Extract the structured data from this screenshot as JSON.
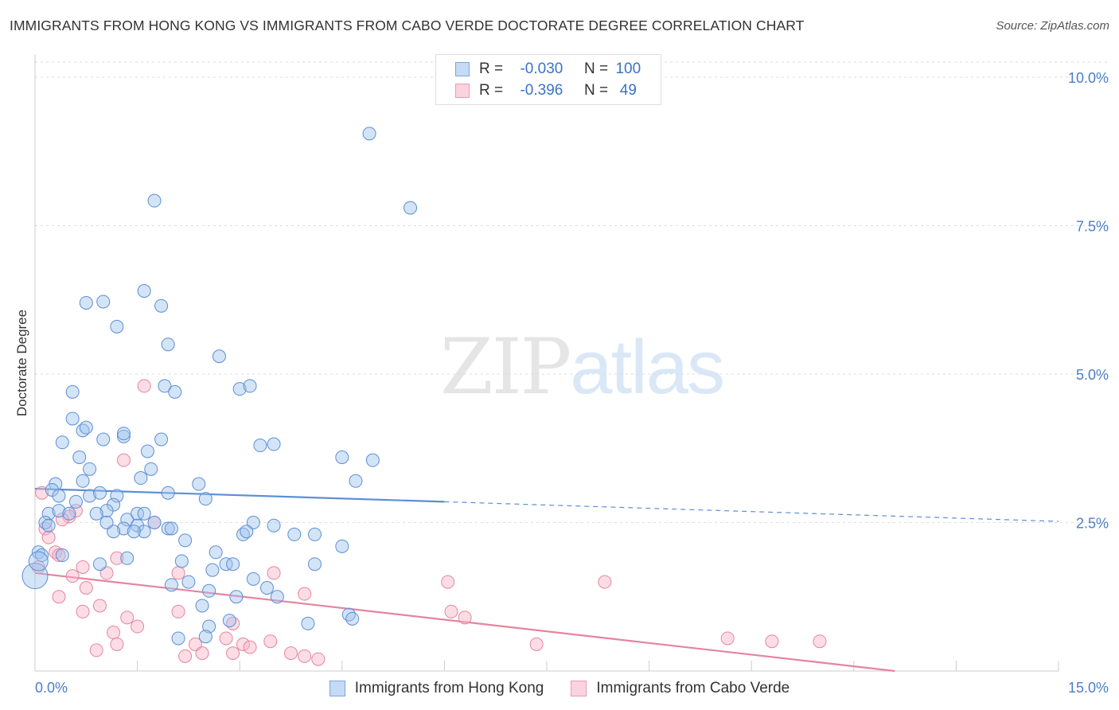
{
  "title": "IMMIGRANTS FROM HONG KONG VS IMMIGRANTS FROM CABO VERDE DOCTORATE DEGREE CORRELATION CHART",
  "source": "Source: ZipAtlas.com",
  "watermark": {
    "zip": "ZIP",
    "atlas": "atlas"
  },
  "legend_top": {
    "rows": [
      {
        "r_label": "R =",
        "r_value": "-0.030",
        "n_label": "N =",
        "n_value": "100"
      },
      {
        "r_label": "R =",
        "r_value": "-0.396",
        "n_label": "N =",
        "n_value": "49"
      }
    ]
  },
  "colors": {
    "hong_kong": "#5b8fd4",
    "cabo_verde": "#e6849f",
    "axis_text": "#4a7fc9"
  },
  "chart_data": {
    "type": "scatter",
    "title": "IMMIGRANTS FROM HONG KONG VS IMMIGRANTS FROM CABO VERDE DOCTORATE DEGREE CORRELATION CHART",
    "xlabel": "",
    "ylabel": "Doctorate Degree",
    "xlim": [
      0,
      15
    ],
    "ylim": [
      0,
      10.5
    ],
    "x_tick_labels": [
      "0.0%",
      "15.0%"
    ],
    "y_ticks": [
      2.5,
      5.0,
      7.5,
      10.0
    ],
    "y_tick_labels": [
      "2.5%",
      "5.0%",
      "7.5%",
      "10.0%"
    ],
    "series": [
      {
        "name": "Immigrants from Hong Kong",
        "color": "#5b8fd4",
        "r": -0.03,
        "n": 100,
        "trend": {
          "x0": 0.0,
          "y0": 3.07,
          "x1": 6.0,
          "y1": 2.85,
          "dash_to_x": 15.0,
          "dash_to_y": 2.52
        },
        "points": [
          [
            4.9,
            9.05
          ],
          [
            5.5,
            7.8
          ],
          [
            1.75,
            7.92
          ],
          [
            1.6,
            6.4
          ],
          [
            0.75,
            6.2
          ],
          [
            1.0,
            6.22
          ],
          [
            1.85,
            6.15
          ],
          [
            1.2,
            5.8
          ],
          [
            1.95,
            5.5
          ],
          [
            2.7,
            5.3
          ],
          [
            0.55,
            4.7
          ],
          [
            1.9,
            4.8
          ],
          [
            2.05,
            4.7
          ],
          [
            3.0,
            4.75
          ],
          [
            3.15,
            4.8
          ],
          [
            0.55,
            4.25
          ],
          [
            0.7,
            4.05
          ],
          [
            0.75,
            4.1
          ],
          [
            0.4,
            3.85
          ],
          [
            1.0,
            3.9
          ],
          [
            1.3,
            3.95
          ],
          [
            1.3,
            4.0
          ],
          [
            1.65,
            3.7
          ],
          [
            1.85,
            3.9
          ],
          [
            3.3,
            3.8
          ],
          [
            3.5,
            3.82
          ],
          [
            4.5,
            3.6
          ],
          [
            4.95,
            3.55
          ],
          [
            0.65,
            3.6
          ],
          [
            0.8,
            3.4
          ],
          [
            1.7,
            3.4
          ],
          [
            1.55,
            3.25
          ],
          [
            0.7,
            3.2
          ],
          [
            4.7,
            3.2
          ],
          [
            2.4,
            3.15
          ],
          [
            0.3,
            3.15
          ],
          [
            0.25,
            3.05
          ],
          [
            1.95,
            3.0
          ],
          [
            0.8,
            2.95
          ],
          [
            0.95,
            3.0
          ],
          [
            1.2,
            2.95
          ],
          [
            2.5,
            2.9
          ],
          [
            0.35,
            2.95
          ],
          [
            0.6,
            2.85
          ],
          [
            1.15,
            2.8
          ],
          [
            0.2,
            2.65
          ],
          [
            0.35,
            2.7
          ],
          [
            0.5,
            2.65
          ],
          [
            1.05,
            2.7
          ],
          [
            1.35,
            2.55
          ],
          [
            1.5,
            2.65
          ],
          [
            1.6,
            2.65
          ],
          [
            1.75,
            2.5
          ],
          [
            0.9,
            2.65
          ],
          [
            1.3,
            2.4
          ],
          [
            1.5,
            2.45
          ],
          [
            1.6,
            2.35
          ],
          [
            0.15,
            2.5
          ],
          [
            0.2,
            2.45
          ],
          [
            1.15,
            2.35
          ],
          [
            1.45,
            2.35
          ],
          [
            1.95,
            2.4
          ],
          [
            2.2,
            2.2
          ],
          [
            3.2,
            2.5
          ],
          [
            3.5,
            2.45
          ],
          [
            3.05,
            2.3
          ],
          [
            3.1,
            2.35
          ],
          [
            3.8,
            2.3
          ],
          [
            4.1,
            2.3
          ],
          [
            4.5,
            2.1
          ],
          [
            0.05,
            2.0
          ],
          [
            0.1,
            1.95
          ],
          [
            0.4,
            1.95
          ],
          [
            0.95,
            1.8
          ],
          [
            1.35,
            1.9
          ],
          [
            2.15,
            1.85
          ],
          [
            2.65,
            2.0
          ],
          [
            2.8,
            1.8
          ],
          [
            2.9,
            1.8
          ],
          [
            2.6,
            1.7
          ],
          [
            4.1,
            1.8
          ],
          [
            3.2,
            1.55
          ],
          [
            3.4,
            1.4
          ],
          [
            2.25,
            1.5
          ],
          [
            2.0,
            1.45
          ],
          [
            2.55,
            1.35
          ],
          [
            2.95,
            1.25
          ],
          [
            3.55,
            1.25
          ],
          [
            2.45,
            1.1
          ],
          [
            2.55,
            0.75
          ],
          [
            2.85,
            0.85
          ],
          [
            4.0,
            0.8
          ],
          [
            4.6,
            0.95
          ],
          [
            4.65,
            0.88
          ],
          [
            2.1,
            0.55
          ],
          [
            2.5,
            0.58
          ],
          [
            0.0,
            1.6
          ],
          [
            0.05,
            1.85
          ],
          [
            1.05,
            2.5
          ],
          [
            2.0,
            2.4
          ]
        ]
      },
      {
        "name": "Immigrants from Cabo Verde",
        "color": "#e6849f",
        "r": -0.396,
        "n": 49,
        "trend": {
          "x0": 0.0,
          "y0": 1.65,
          "x1": 12.6,
          "y1": 0.0
        },
        "points": [
          [
            1.6,
            4.8
          ],
          [
            1.3,
            3.55
          ],
          [
            0.1,
            3.0
          ],
          [
            0.6,
            2.7
          ],
          [
            0.5,
            2.6
          ],
          [
            0.4,
            2.55
          ],
          [
            1.75,
            2.5
          ],
          [
            0.15,
            2.4
          ],
          [
            0.2,
            2.25
          ],
          [
            0.3,
            2.0
          ],
          [
            0.35,
            1.95
          ],
          [
            0.05,
            1.75
          ],
          [
            1.2,
            1.9
          ],
          [
            0.7,
            1.75
          ],
          [
            1.05,
            1.65
          ],
          [
            0.55,
            1.6
          ],
          [
            2.1,
            1.65
          ],
          [
            3.5,
            1.65
          ],
          [
            0.75,
            1.4
          ],
          [
            0.35,
            1.25
          ],
          [
            3.95,
            1.3
          ],
          [
            0.95,
            1.1
          ],
          [
            0.7,
            1.0
          ],
          [
            2.1,
            1.0
          ],
          [
            6.05,
            1.5
          ],
          [
            8.35,
            1.5
          ],
          [
            6.1,
            1.0
          ],
          [
            6.3,
            0.9
          ],
          [
            1.35,
            0.9
          ],
          [
            2.9,
            0.8
          ],
          [
            1.5,
            0.75
          ],
          [
            1.15,
            0.65
          ],
          [
            3.05,
            0.45
          ],
          [
            3.45,
            0.5
          ],
          [
            2.8,
            0.55
          ],
          [
            1.2,
            0.45
          ],
          [
            2.35,
            0.45
          ],
          [
            2.45,
            0.3
          ],
          [
            2.9,
            0.3
          ],
          [
            3.15,
            0.4
          ],
          [
            3.75,
            0.3
          ],
          [
            3.95,
            0.25
          ],
          [
            4.15,
            0.2
          ],
          [
            0.9,
            0.35
          ],
          [
            2.2,
            0.25
          ],
          [
            7.35,
            0.45
          ],
          [
            10.15,
            0.55
          ],
          [
            10.8,
            0.5
          ],
          [
            11.5,
            0.5
          ]
        ]
      }
    ]
  },
  "bottom_legend": {
    "items": [
      {
        "label": "Immigrants from Hong Kong"
      },
      {
        "label": "Immigrants from Cabo Verde"
      }
    ]
  }
}
